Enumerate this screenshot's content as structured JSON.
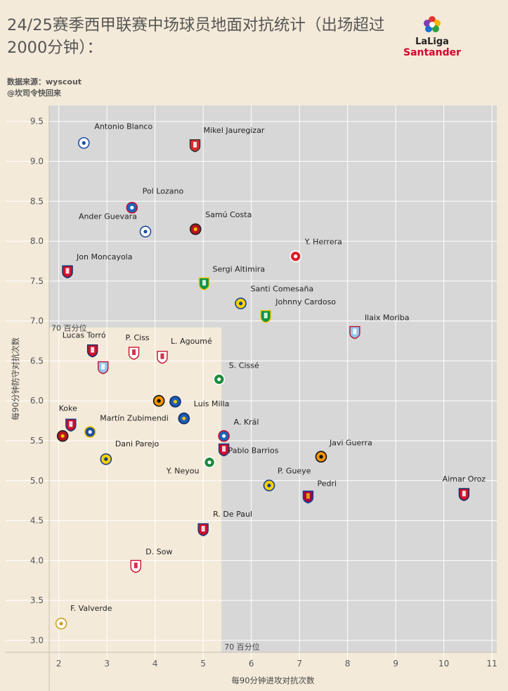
{
  "header": {
    "title": "24/25赛季西甲联赛中场球员地面对抗统计（出场超过2000分钟）：",
    "source": "数据来源：wyscout",
    "author": "@坎司令快回来",
    "logo_text_1": "LaLiga",
    "logo_text_2": "Santander"
  },
  "colors": {
    "background": "#f4ead9",
    "plot_grey": "#d7d7d7",
    "grid": "#ffffff",
    "quadrant_highlight": "#f4ead9"
  },
  "chart_data": {
    "type": "scatter",
    "xlabel": "每90分钟进攻对抗次数",
    "ylabel": "每90分钟防守对抗次数",
    "xlim": [
      1.8,
      11.1
    ],
    "ylim": [
      2.85,
      9.7
    ],
    "x_ticks": [
      2,
      3,
      4,
      5,
      6,
      7,
      8,
      9,
      10,
      11
    ],
    "y_ticks": [
      3.0,
      3.5,
      4.0,
      4.5,
      5.0,
      5.5,
      6.0,
      6.5,
      7.0,
      7.5,
      8.0,
      8.5,
      9.0,
      9.5
    ],
    "x_tick_labels": [
      "2",
      "3",
      "4",
      "5",
      "6",
      "7",
      "8",
      "9",
      "10",
      "11"
    ],
    "y_tick_labels": [
      "3.0",
      "3.5",
      "4.0",
      "4.5",
      "5.0",
      "5.5",
      "6.0",
      "6.5",
      "7.0",
      "7.5",
      "8.0",
      "8.5",
      "9.0",
      "9.5"
    ],
    "reference_lines": [
      {
        "axis": "x",
        "value": 5.38,
        "label": "70 百分位"
      },
      {
        "axis": "y",
        "value": 6.92,
        "label": "70 百分位"
      }
    ],
    "grid": true,
    "points": [
      {
        "name": "Antonio Blanco",
        "x": 2.52,
        "y": 9.23,
        "crest": "alaves"
      },
      {
        "name": "Mikel Jauregizar",
        "x": 4.83,
        "y": 9.2,
        "crest": "athletic"
      },
      {
        "name": "Pol Lozano",
        "x": 3.52,
        "y": 8.42,
        "crest": "espanyol"
      },
      {
        "name": "Samú Costa",
        "x": 4.84,
        "y": 8.15,
        "crest": "mallorca"
      },
      {
        "name": "Ander Guevara",
        "x": 3.8,
        "y": 8.12,
        "crest": "alaves"
      },
      {
        "name": "Y. Herrera",
        "x": 6.92,
        "y": 7.81,
        "crest": "girona"
      },
      {
        "name": "Jon Moncayola",
        "x": 2.18,
        "y": 7.62,
        "crest": "osasuna"
      },
      {
        "name": "Sergi Altimira",
        "x": 5.02,
        "y": 7.47,
        "crest": "betis"
      },
      {
        "name": "Santi Comesaña",
        "x": 5.78,
        "y": 7.22,
        "crest": "villarreal"
      },
      {
        "name": "Johnny Cardoso",
        "x": 6.3,
        "y": 7.06,
        "crest": "betis"
      },
      {
        "name": "Ilaix Moriba",
        "x": 8.15,
        "y": 6.86,
        "crest": "celta"
      },
      {
        "name": "Lucas Torró",
        "x": 2.7,
        "y": 6.63,
        "crest": "osasuna"
      },
      {
        "name": "P. Ciss",
        "x": 3.56,
        "y": 6.6,
        "crest": "rayo"
      },
      {
        "name": "L. Agoumé",
        "x": 4.15,
        "y": 6.55,
        "crest": "sevilla"
      },
      {
        "name": "",
        "x": 2.92,
        "y": 6.42,
        "crest": "celta"
      },
      {
        "name": "S. Cissé",
        "x": 5.33,
        "y": 6.27,
        "crest": "leganes"
      },
      {
        "name": "",
        "x": 4.08,
        "y": 6.0,
        "crest": "valencia"
      },
      {
        "name": "",
        "x": 4.42,
        "y": 5.99,
        "crest": "getafe"
      },
      {
        "name": "Luis Milla",
        "x": 4.6,
        "y": 5.78,
        "crest": "getafe"
      },
      {
        "name": "Koke",
        "x": 2.25,
        "y": 5.7,
        "crest": "atletico"
      },
      {
        "name": "Martín Zubimendi",
        "x": 2.65,
        "y": 5.61,
        "crest": "realsociedad"
      },
      {
        "name": "",
        "x": 2.08,
        "y": 5.56,
        "crest": "mallorca"
      },
      {
        "name": "A. Král",
        "x": 5.43,
        "y": 5.56,
        "crest": "espanyol"
      },
      {
        "name": "Pablo Barrios",
        "x": 5.43,
        "y": 5.39,
        "crest": "atletico"
      },
      {
        "name": "Javi Guerra",
        "x": 7.45,
        "y": 5.3,
        "crest": "valencia"
      },
      {
        "name": "Dani Parejo",
        "x": 2.98,
        "y": 5.27,
        "crest": "villarreal"
      },
      {
        "name": "Y. Neyou",
        "x": 5.13,
        "y": 5.23,
        "crest": "leganes"
      },
      {
        "name": "P. Gueye",
        "x": 6.37,
        "y": 4.94,
        "crest": "villarreal"
      },
      {
        "name": "Aimar Oroz",
        "x": 10.42,
        "y": 4.83,
        "crest": "osasuna"
      },
      {
        "name": "Pedri",
        "x": 7.18,
        "y": 4.8,
        "crest": "barcelona"
      },
      {
        "name": "R. De Paul",
        "x": 5.0,
        "y": 4.39,
        "crest": "atletico"
      },
      {
        "name": "D. Sow",
        "x": 3.6,
        "y": 3.93,
        "crest": "sevilla"
      },
      {
        "name": "F. Valverde",
        "x": 2.05,
        "y": 3.21,
        "crest": "realmadrid"
      }
    ]
  }
}
